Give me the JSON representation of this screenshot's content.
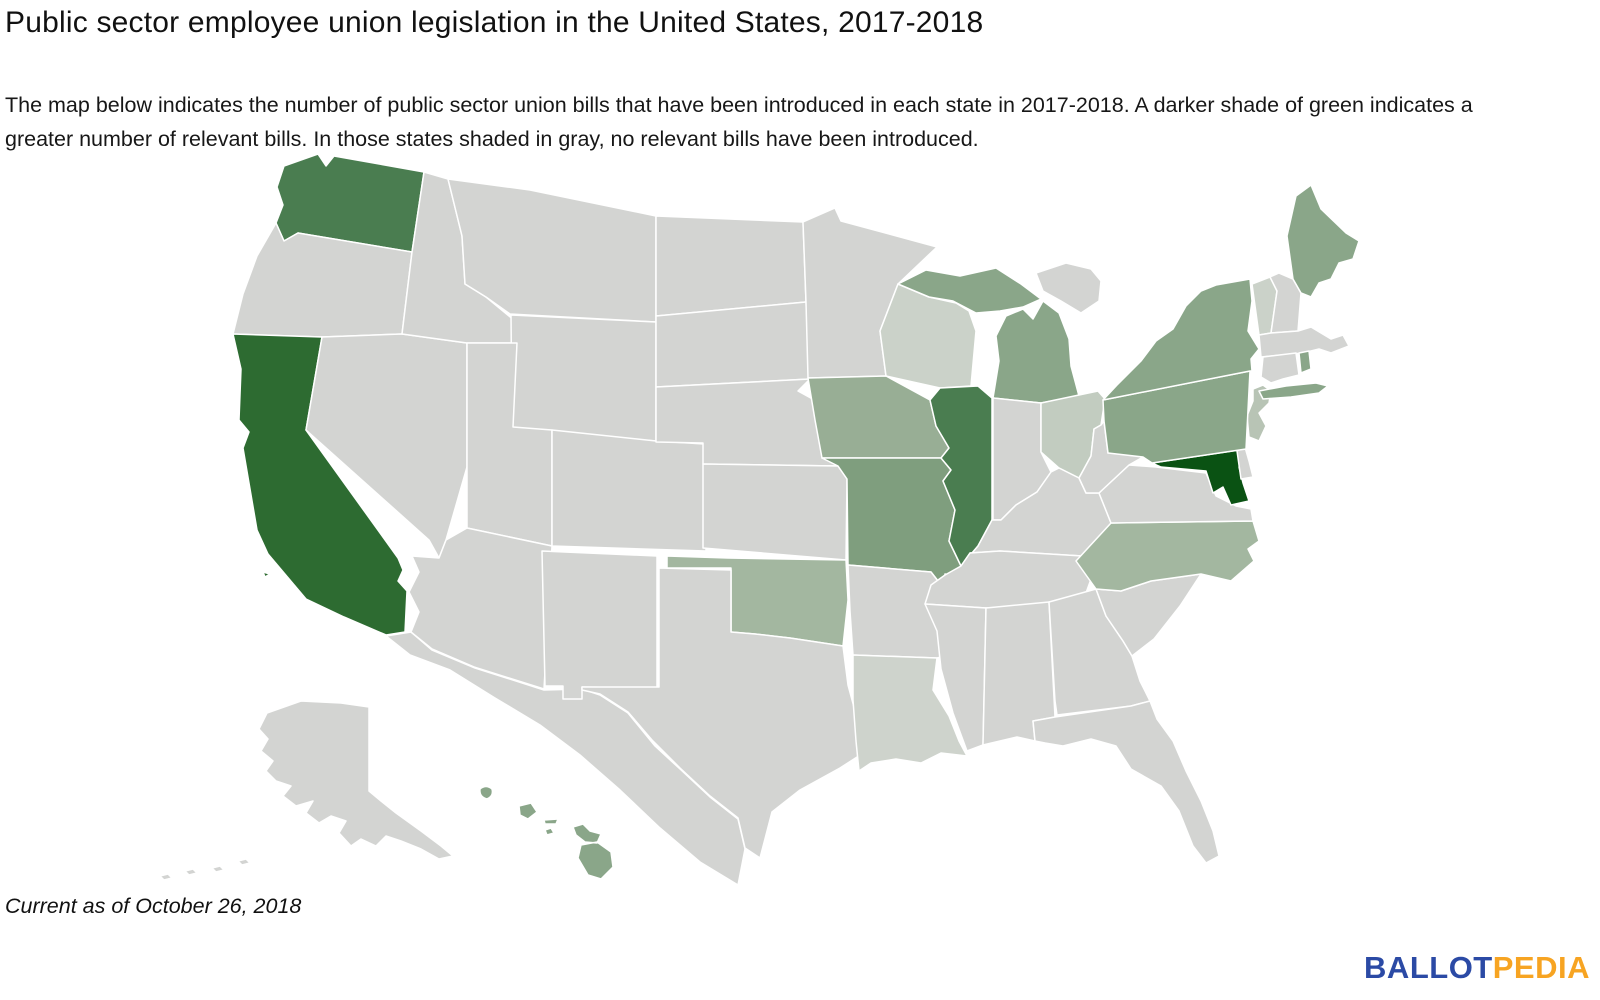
{
  "header": {
    "title": "Public sector employee union legislation in the United States, 2017-2018",
    "subtitle": "The map below indicates the number of public sector union bills that have been introduced in each state in 2017-2018. A darker shade of green indicates a greater number of relevant bills. In those states shaded in gray, no relevant bills have been introduced."
  },
  "footer": {
    "note": "Current as of October 26, 2018",
    "logo": {
      "ballot": "BALLOT",
      "pedia": "PEDIA",
      "ballot_color": "#2b4aa5",
      "pedia_color": "#f7a422"
    }
  },
  "map": {
    "background_color": "#ffffff",
    "state_border_color": "#ffffff",
    "shade_palette": {
      "g0": "#d3d4d2",
      "g1": "#ced3cc",
      "g2": "#cbd2c9",
      "g3": "#c2ccc0",
      "g4": "#b8c4b5",
      "g5": "#a3b7a0",
      "g6": "#98ae95",
      "g7": "#8aa689",
      "g8": "#7f9e7e",
      "g9": "#4a7d50",
      "g10": "#2d6b31",
      "g11": "#0a5213"
    },
    "states": [
      {
        "id": "WA",
        "name": "Washington",
        "shade": "g9"
      },
      {
        "id": "OR",
        "name": "Oregon",
        "shade": "g0"
      },
      {
        "id": "CA",
        "name": "California",
        "shade": "g10"
      },
      {
        "id": "NV",
        "name": "Nevada",
        "shade": "g0"
      },
      {
        "id": "ID",
        "name": "Idaho",
        "shade": "g0"
      },
      {
        "id": "MT",
        "name": "Montana",
        "shade": "g0"
      },
      {
        "id": "WY",
        "name": "Wyoming",
        "shade": "g0"
      },
      {
        "id": "UT",
        "name": "Utah",
        "shade": "g0"
      },
      {
        "id": "CO",
        "name": "Colorado",
        "shade": "g0"
      },
      {
        "id": "AZ",
        "name": "Arizona",
        "shade": "g0"
      },
      {
        "id": "NM",
        "name": "New Mexico",
        "shade": "g0"
      },
      {
        "id": "ND",
        "name": "North Dakota",
        "shade": "g0"
      },
      {
        "id": "SD",
        "name": "South Dakota",
        "shade": "g0"
      },
      {
        "id": "NE",
        "name": "Nebraska",
        "shade": "g0"
      },
      {
        "id": "KS",
        "name": "Kansas",
        "shade": "g0"
      },
      {
        "id": "OK",
        "name": "Oklahoma",
        "shade": "g5"
      },
      {
        "id": "TX",
        "name": "Texas",
        "shade": "g0"
      },
      {
        "id": "MN",
        "name": "Minnesota",
        "shade": "g0"
      },
      {
        "id": "IA",
        "name": "Iowa",
        "shade": "g6"
      },
      {
        "id": "MO",
        "name": "Missouri",
        "shade": "g8"
      },
      {
        "id": "AR",
        "name": "Arkansas",
        "shade": "g0"
      },
      {
        "id": "LA",
        "name": "Louisiana",
        "shade": "g1"
      },
      {
        "id": "WI",
        "name": "Wisconsin",
        "shade": "g2"
      },
      {
        "id": "IL",
        "name": "Illinois",
        "shade": "g9"
      },
      {
        "id": "MI",
        "name": "Michigan",
        "shade": "g7"
      },
      {
        "id": "IN",
        "name": "Indiana",
        "shade": "g0"
      },
      {
        "id": "OH",
        "name": "Ohio",
        "shade": "g3"
      },
      {
        "id": "KY",
        "name": "Kentucky",
        "shade": "g0"
      },
      {
        "id": "TN",
        "name": "Tennessee",
        "shade": "g0"
      },
      {
        "id": "MS",
        "name": "Mississippi",
        "shade": "g0"
      },
      {
        "id": "AL",
        "name": "Alabama",
        "shade": "g0"
      },
      {
        "id": "GA",
        "name": "Georgia",
        "shade": "g0"
      },
      {
        "id": "FL",
        "name": "Florida",
        "shade": "g0"
      },
      {
        "id": "SC",
        "name": "South Carolina",
        "shade": "g0"
      },
      {
        "id": "NC",
        "name": "North Carolina",
        "shade": "g5"
      },
      {
        "id": "VA",
        "name": "Virginia",
        "shade": "g0"
      },
      {
        "id": "WV",
        "name": "West Virginia",
        "shade": "g0"
      },
      {
        "id": "MD",
        "name": "Maryland",
        "shade": "g11"
      },
      {
        "id": "DE",
        "name": "Delaware",
        "shade": "g0"
      },
      {
        "id": "NJ",
        "name": "New Jersey",
        "shade": "g4"
      },
      {
        "id": "PA",
        "name": "Pennsylvania",
        "shade": "g7"
      },
      {
        "id": "NY",
        "name": "New York",
        "shade": "g7"
      },
      {
        "id": "VT",
        "name": "Vermont",
        "shade": "g2"
      },
      {
        "id": "NH",
        "name": "New Hampshire",
        "shade": "g0"
      },
      {
        "id": "MA",
        "name": "Massachusetts",
        "shade": "g0"
      },
      {
        "id": "CT",
        "name": "Connecticut",
        "shade": "g0"
      },
      {
        "id": "RI",
        "name": "Rhode Island",
        "shade": "g7"
      },
      {
        "id": "ME",
        "name": "Maine",
        "shade": "g7"
      },
      {
        "id": "AK",
        "name": "Alaska",
        "shade": "g0"
      },
      {
        "id": "HI",
        "name": "Hawaii",
        "shade": "g7"
      }
    ],
    "context_shapes": [
      {
        "id": "MX",
        "name": "mexico-landmass",
        "shade": "g0"
      },
      {
        "id": "ON",
        "name": "ontario-canada-landmass",
        "shade": "g0"
      }
    ]
  }
}
